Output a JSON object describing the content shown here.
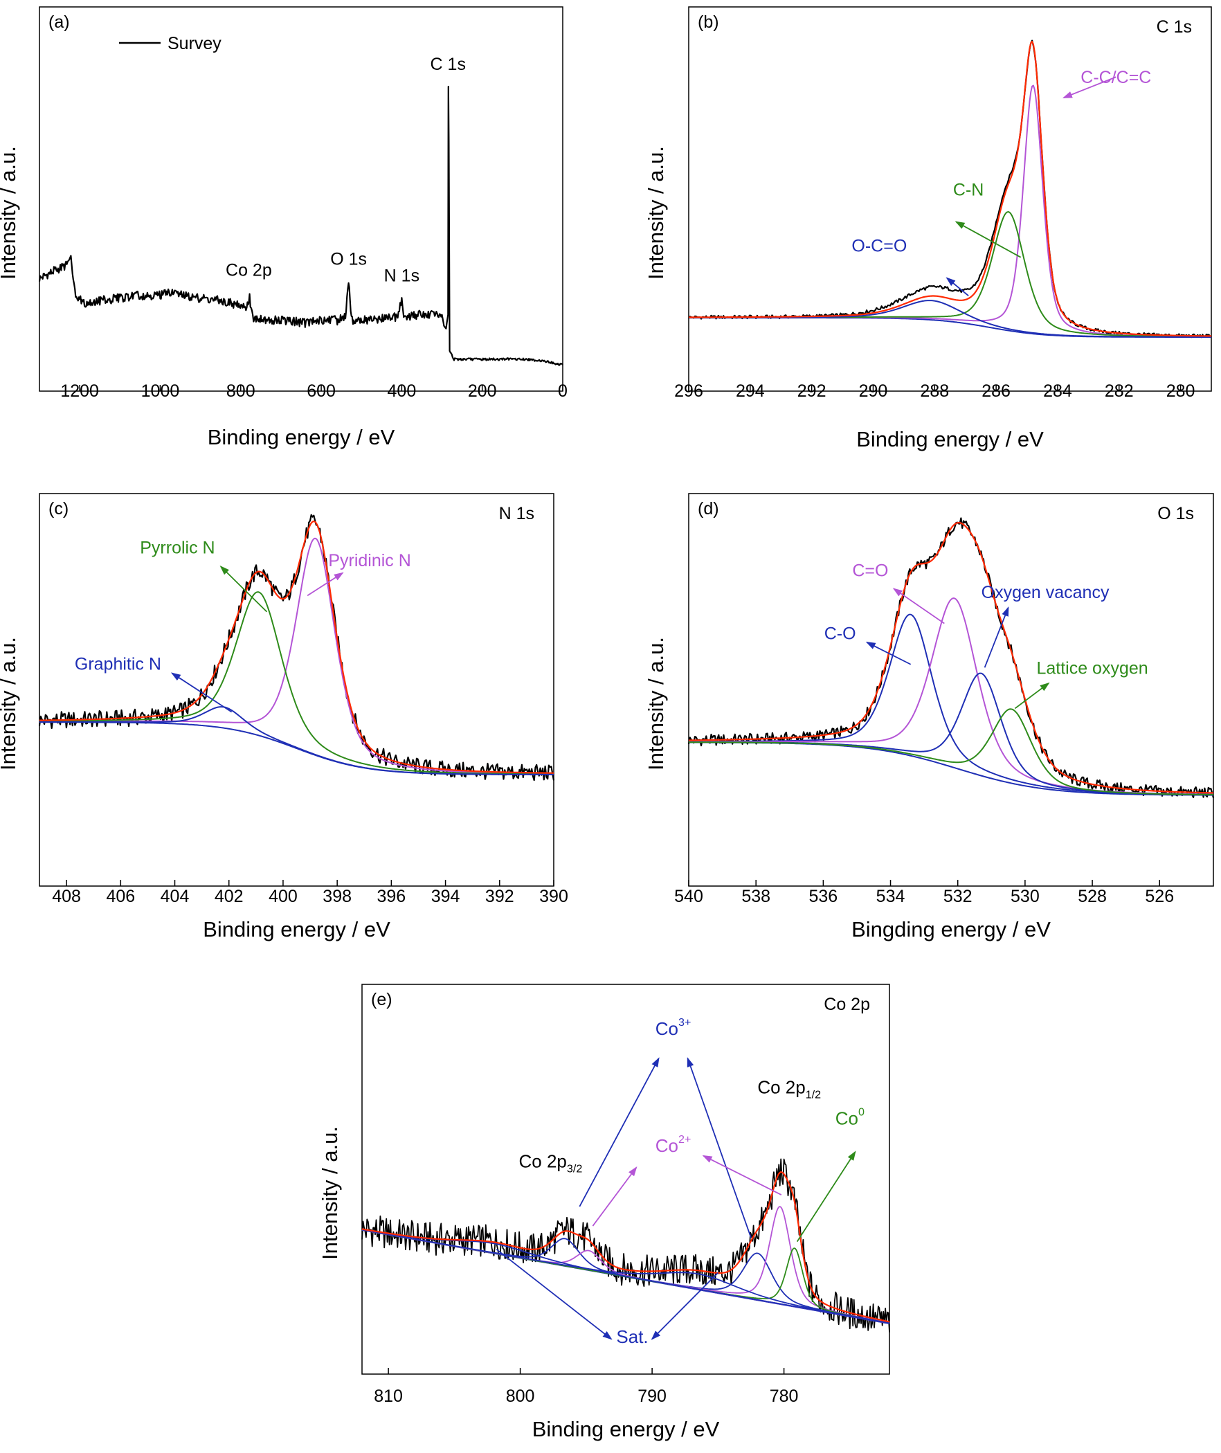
{
  "colors": {
    "data": "#000000",
    "fit": "#ff2a00",
    "background": "#1f2fb5",
    "purple": "#b455d6",
    "green": "#2e8b1a",
    "blue": "#1f2fb5"
  },
  "chart_data": [
    {
      "id": "a",
      "type": "line",
      "panel_label": "(a)",
      "title": "",
      "xlabel": "Binding energy / eV",
      "ylabel": "Intensity / a.u.",
      "xlim": [
        1300,
        0
      ],
      "ylim": [
        0,
        100
      ],
      "xticks": [
        1200,
        1000,
        800,
        600,
        400,
        200,
        0
      ],
      "grid": false,
      "legend": {
        "entries": [
          "Survey"
        ],
        "position": "top-left"
      },
      "series": [
        {
          "name": "Survey",
          "role": "data",
          "color": "black",
          "points": [
            [
              1300,
              31
            ],
            [
              1260,
              34
            ],
            [
              1230,
              36
            ],
            [
              1222,
              38
            ],
            [
              1210,
              25
            ],
            [
              1190,
              22
            ],
            [
              1150,
              23
            ],
            [
              1100,
              24
            ],
            [
              1050,
              25
            ],
            [
              1000,
              25
            ],
            [
              980,
              26
            ],
            [
              950,
              25
            ],
            [
              900,
              24
            ],
            [
              850,
              23
            ],
            [
              820,
              22
            ],
            [
              795,
              21
            ],
            [
              785,
              20
            ],
            [
              778,
              24
            ],
            [
              770,
              17
            ],
            [
              720,
              16
            ],
            [
              680,
              16
            ],
            [
              640,
              15
            ],
            [
              600,
              16
            ],
            [
              560,
              16
            ],
            [
              540,
              17
            ],
            [
              532,
              30
            ],
            [
              525,
              16
            ],
            [
              480,
              16
            ],
            [
              440,
              17
            ],
            [
              410,
              17
            ],
            [
              400,
              24
            ],
            [
              395,
              17
            ],
            [
              360,
              18
            ],
            [
              320,
              18
            ],
            [
              300,
              18
            ],
            [
              295,
              14
            ],
            [
              290,
              13
            ],
            [
              285,
              18
            ],
            [
              284,
              100
            ],
            [
              283,
              80
            ],
            [
              281,
              5
            ],
            [
              270,
              2
            ],
            [
              200,
              2
            ],
            [
              150,
              2
            ],
            [
              100,
              2
            ],
            [
              50,
              1.5
            ],
            [
              20,
              0.5
            ],
            [
              0,
              0
            ]
          ]
        }
      ],
      "annotations": [
        {
          "text": "C 1s",
          "x": 285,
          "y": 103
        },
        {
          "text": "Co 2p",
          "x": 780,
          "y": 29
        },
        {
          "text": "O 1s",
          "x": 532,
          "y": 33
        },
        {
          "text": "N 1s",
          "x": 400,
          "y": 27
        }
      ]
    },
    {
      "id": "b",
      "type": "line",
      "panel_label": "(b)",
      "title": "C 1s",
      "xlabel": "Binding energy / eV",
      "ylabel": "Intensity / a.u.",
      "xlim": [
        296,
        279
      ],
      "ylim": [
        0,
        100
      ],
      "xticks": [
        296,
        294,
        292,
        290,
        288,
        286,
        284,
        282,
        280
      ],
      "grid": false,
      "peaks": [
        {
          "name": "C-C/C=C",
          "center": 284.8,
          "fwhm": 0.75,
          "height": 90,
          "color": "purple"
        },
        {
          "name": "C-N",
          "center": 285.6,
          "fwhm": 1.25,
          "height": 43,
          "color": "green"
        },
        {
          "name": "O-C=O",
          "center": 288.1,
          "fwhm": 2.2,
          "height": 7,
          "color": "blue"
        }
      ],
      "background": {
        "type": "shirley",
        "high": 7,
        "low": 0,
        "center": 286.2,
        "width": 0.9,
        "color": "blue"
      },
      "annotations": [
        {
          "text": "C-C/C=C",
          "x": 282.1,
          "y": 88,
          "arrow_to": [
            283.8,
            81
          ],
          "color": "purple"
        },
        {
          "text": "C-N",
          "x": 286.9,
          "y": 50,
          "arrow_to": [
            287.3,
            39
          ],
          "arrow_from": [
            285.2,
            27
          ],
          "color": "green"
        },
        {
          "text": "O-C=O",
          "x": 289.8,
          "y": 31,
          "arrow_to": [
            287.6,
            20
          ],
          "arrow_from": [
            286.9,
            14
          ],
          "color": "blue"
        }
      ]
    },
    {
      "id": "c",
      "type": "line",
      "panel_label": "(c)",
      "title": "N 1s",
      "xlabel": "Binding energy / eV",
      "ylabel": "Intensity / a.u.",
      "xlim": [
        409,
        390
      ],
      "ylim": [
        0,
        100
      ],
      "xticks": [
        408,
        406,
        404,
        402,
        400,
        398,
        396,
        394,
        392,
        390
      ],
      "grid": false,
      "peaks": [
        {
          "name": "Pyridinic N",
          "center": 398.8,
          "fwhm": 1.7,
          "height": 62,
          "color": "purple"
        },
        {
          "name": "Pyrrolic N",
          "center": 400.9,
          "fwhm": 2.0,
          "height": 41,
          "color": "green"
        },
        {
          "name": "Graphitic N",
          "center": 402.2,
          "fwhm": 1.7,
          "height": 6,
          "color": "blue"
        }
      ],
      "background": {
        "type": "shirley",
        "high": 35,
        "low": 20,
        "center": 399.5,
        "width": 1.3,
        "color": "blue"
      },
      "annotations": [
        {
          "text": "Pyridinic N",
          "x": 396.8,
          "y": 88,
          "arrow_to": [
            397.8,
            84
          ],
          "arrow_from": [
            399.1,
            77
          ],
          "color": "purple"
        },
        {
          "text": "Pyrrolic N",
          "x": 403.9,
          "y": 92,
          "arrow_to": [
            402.3,
            86
          ],
          "arrow_from": [
            400.6,
            72
          ],
          "color": "green"
        },
        {
          "text": "Graphitic N",
          "x": 406.1,
          "y": 56,
          "arrow_to": [
            404.1,
            53
          ],
          "arrow_from": [
            401.9,
            41
          ],
          "color": "blue"
        }
      ]
    },
    {
      "id": "d",
      "type": "line",
      "panel_label": "(d)",
      "title": "O 1s",
      "xlabel": "Bingding energy / eV",
      "ylabel": "Intensity / a.u.",
      "xlim": [
        540,
        524.4
      ],
      "ylim": [
        0,
        100
      ],
      "xticks": [
        540,
        538,
        536,
        534,
        532,
        530,
        528,
        526
      ],
      "grid": false,
      "peaks": [
        {
          "name": "C-O",
          "center": 533.4,
          "fwhm": 1.5,
          "height": 40,
          "color": "blue"
        },
        {
          "name": "C=O",
          "center": 532.1,
          "fwhm": 1.6,
          "height": 48,
          "color": "purple"
        },
        {
          "name": "Oxygen vacancy",
          "center": 531.3,
          "fwhm": 1.4,
          "height": 29,
          "color": "blue"
        },
        {
          "name": "Lattice oxygen",
          "center": 530.4,
          "fwhm": 1.4,
          "height": 21,
          "color": "green"
        }
      ],
      "background": {
        "type": "shirley",
        "high": 27,
        "low": 12,
        "center": 532.0,
        "width": 1.3,
        "color": "blue"
      },
      "annotations": [
        {
          "text": "C=O",
          "x": 534.6,
          "y": 85,
          "arrow_to": [
            533.9,
            79
          ],
          "arrow_from": [
            532.4,
            68
          ],
          "color": "purple"
        },
        {
          "text": "C-O",
          "x": 535.5,
          "y": 65,
          "arrow_to": [
            534.7,
            62
          ],
          "arrow_from": [
            533.4,
            55
          ],
          "color": "blue"
        },
        {
          "text": "Oxygen vacancy",
          "x": 529.4,
          "y": 78,
          "arrow_to": [
            530.5,
            73
          ],
          "arrow_from": [
            531.2,
            54
          ],
          "color": "blue"
        },
        {
          "text": "Lattice oxygen",
          "x": 528.0,
          "y": 54,
          "arrow_to": [
            529.3,
            49
          ],
          "arrow_from": [
            530.3,
            41
          ],
          "color": "green"
        }
      ]
    },
    {
      "id": "e",
      "type": "line",
      "panel_label": "(e)",
      "title": "Co 2p",
      "xlabel": "Binding energy / eV",
      "ylabel": "Intensity / a.u.",
      "xlim": [
        812,
        772
      ],
      "ylim": [
        0,
        100
      ],
      "xticks": [
        810,
        800,
        790,
        780
      ],
      "grid": false,
      "baseline": {
        "x1": 812,
        "y1": 37,
        "x2": 772,
        "y2": 13,
        "color": "blue"
      },
      "peaks": [
        {
          "name": "Co 2p1/2 Co3+",
          "center": 782.0,
          "fwhm": 2.6,
          "height": 12,
          "color": "blue"
        },
        {
          "name": "Co 2p1/2 Co2+",
          "center": 780.3,
          "fwhm": 1.9,
          "height": 25,
          "color": "purple"
        },
        {
          "name": "Co0",
          "center": 779.2,
          "fwhm": 1.5,
          "height": 15,
          "color": "green"
        },
        {
          "name": "Co 2p3/2 Co3+",
          "center": 796.6,
          "fwhm": 2.5,
          "height": 7,
          "color": "blue"
        },
        {
          "name": "Co 2p3/2 Co2+",
          "center": 794.8,
          "fwhm": 2.2,
          "height": 5,
          "color": "purple"
        },
        {
          "name": "Sat.",
          "center": 786.5,
          "fwhm": 7.0,
          "height": 4,
          "color": "blue"
        },
        {
          "name": "Sat.",
          "center": 802.0,
          "fwhm": 7.0,
          "height": 2.5,
          "color": "blue"
        }
      ],
      "annotations": [
        {
          "text": "Co 2p",
          "sub": "3/2",
          "x": 797.7,
          "y": 53
        },
        {
          "text": "Co 2p",
          "sub": "1/2",
          "x": 779.6,
          "y": 72
        },
        {
          "text": "Co",
          "sup": "3+",
          "x": 788.4,
          "y": 87,
          "color": "blue"
        },
        {
          "text": "Co",
          "sup": "2+",
          "x": 788.4,
          "y": 57,
          "color": "purple"
        },
        {
          "text": "Co",
          "sup": "0",
          "x": 775.0,
          "y": 64,
          "color": "green"
        },
        {
          "text": "Sat.",
          "x": 791.5,
          "y": 8,
          "color": "blue"
        }
      ],
      "arrows": [
        {
          "from": [
            795.5,
            43
          ],
          "to": [
            789.5,
            81
          ],
          "color": "blue"
        },
        {
          "from": [
            782.5,
            35
          ],
          "to": [
            787.3,
            81
          ],
          "color": "blue"
        },
        {
          "from": [
            794.5,
            38
          ],
          "to": [
            791.2,
            53
          ],
          "color": "purple"
        },
        {
          "from": [
            780.2,
            46
          ],
          "to": [
            786.1,
            56
          ],
          "color": "purple"
        },
        {
          "from": [
            779.0,
            34
          ],
          "to": [
            774.6,
            57
          ],
          "color": "green"
        },
        {
          "from": [
            801.8,
            32
          ],
          "to": [
            793.1,
            9
          ],
          "color": "blue"
        },
        {
          "from": [
            785.0,
            26
          ],
          "to": [
            790.0,
            9
          ],
          "color": "blue"
        }
      ]
    }
  ]
}
